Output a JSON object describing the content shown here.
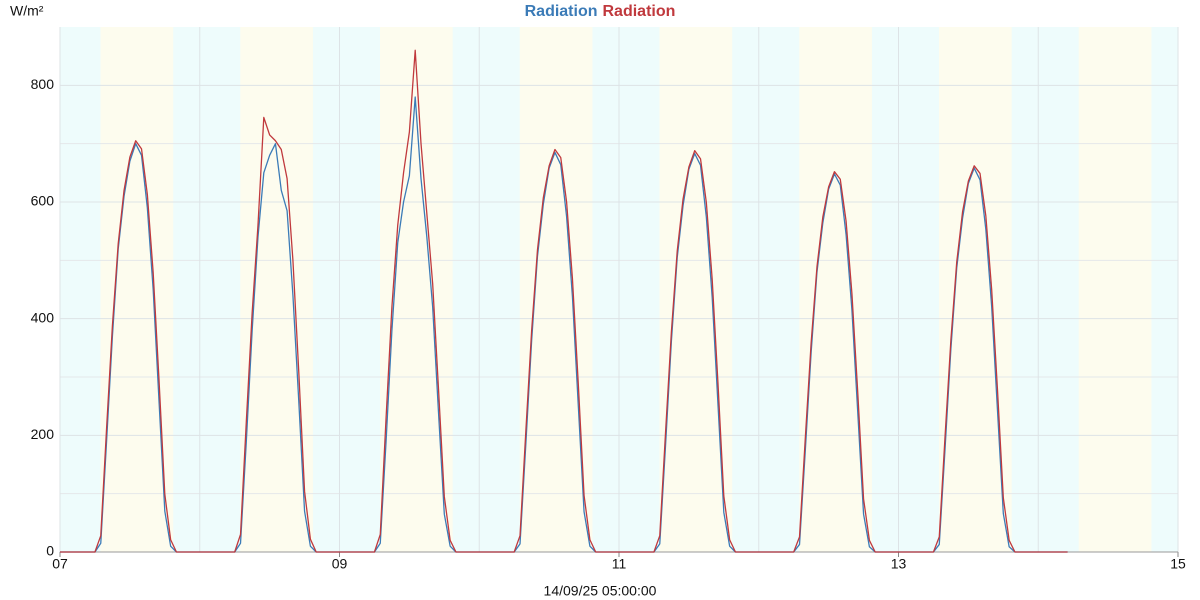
{
  "chart_data": {
    "type": "line",
    "title": "Radiation Radiation",
    "y_unit": "W/m²",
    "xlabel": "14/09/25 05:00:00",
    "xlim": [
      7,
      15
    ],
    "ylim": [
      0,
      900
    ],
    "xticks": [
      {
        "value": 7,
        "label": "07"
      },
      {
        "value": 9,
        "label": "09"
      },
      {
        "value": 11,
        "label": "11"
      },
      {
        "value": 13,
        "label": "13"
      },
      {
        "value": 15,
        "label": "15"
      }
    ],
    "yticks": [
      0,
      200,
      400,
      600,
      800
    ],
    "xgrid_minor": [
      8,
      10,
      12,
      14
    ],
    "ygrid_minor": [
      100,
      300,
      500,
      700
    ],
    "grid": true,
    "night_color": "#eefcfc",
    "day_color": "#fdfcee",
    "day_bands": [
      [
        7.29,
        7.81
      ],
      [
        8.29,
        8.81
      ],
      [
        9.29,
        9.81
      ],
      [
        10.29,
        10.81
      ],
      [
        11.29,
        11.81
      ],
      [
        12.29,
        12.81
      ],
      [
        13.29,
        13.81
      ],
      [
        14.29,
        14.81
      ]
    ],
    "x": [
      7,
      7.25,
      7.2917,
      7.3333,
      7.375,
      7.4167,
      7.4583,
      7.5,
      7.5417,
      7.5833,
      7.625,
      7.6667,
      7.7083,
      7.75,
      7.7917,
      7.8333,
      8.25,
      8.2917,
      8.3333,
      8.375,
      8.4167,
      8.4583,
      8.5,
      8.5417,
      8.5833,
      8.625,
      8.6667,
      8.7083,
      8.75,
      8.7917,
      8.8333,
      9.25,
      9.2917,
      9.3333,
      9.375,
      9.4167,
      9.4583,
      9.5,
      9.5417,
      9.5833,
      9.625,
      9.6667,
      9.7083,
      9.75,
      9.7917,
      9.8333,
      10.25,
      10.2917,
      10.3333,
      10.375,
      10.4167,
      10.4583,
      10.5,
      10.5417,
      10.5833,
      10.625,
      10.6667,
      10.7083,
      10.75,
      10.7917,
      10.8333,
      11.25,
      11.2917,
      11.3333,
      11.375,
      11.4167,
      11.4583,
      11.5,
      11.5417,
      11.5833,
      11.625,
      11.6667,
      11.7083,
      11.75,
      11.7917,
      11.8333,
      12.25,
      12.2917,
      12.3333,
      12.375,
      12.4167,
      12.4583,
      12.5,
      12.5417,
      12.5833,
      12.625,
      12.6667,
      12.7083,
      12.75,
      12.7917,
      12.8333,
      13.25,
      13.2917,
      13.3333,
      13.375,
      13.4167,
      13.4583,
      13.5,
      13.5417,
      13.5833,
      13.625,
      13.6667,
      13.7083,
      13.75,
      13.7917,
      13.8333,
      14.21
    ],
    "series": [
      {
        "name": "Radiation",
        "color": "#3b7bb7",
        "values": [
          0,
          0,
          15,
          190,
          370,
          520,
          610,
          670,
          700,
          680,
          590,
          450,
          260,
          70,
          10,
          0,
          0,
          15,
          190,
          380,
          540,
          650,
          680,
          700,
          620,
          585,
          440,
          260,
          70,
          10,
          0,
          0,
          15,
          190,
          380,
          530,
          600,
          645,
          780,
          640,
          540,
          420,
          240,
          65,
          10,
          0,
          0,
          14,
          185,
          363,
          507,
          596,
          658,
          685,
          664,
          575,
          438,
          253,
          69,
          10,
          0,
          0,
          14,
          184,
          362,
          505,
          594,
          656,
          683,
          663,
          574,
          437,
          253,
          68,
          10,
          0,
          0,
          13,
          175,
          343,
          480,
          564,
          622,
          648,
          629,
          544,
          415,
          240,
          65,
          9,
          0,
          0,
          13,
          178,
          349,
          487,
          572,
          632,
          658,
          638,
          553,
          421,
          243,
          66,
          9,
          0,
          0
        ]
      },
      {
        "name": "Radiation",
        "color": "#c0393d",
        "values": [
          0,
          0,
          28,
          212,
          388,
          529,
          620,
          677,
          705,
          691,
          613,
          479,
          296,
          99,
          21,
          0,
          0,
          30,
          224,
          410,
          560,
          745,
          715,
          705,
          690,
          640,
          500,
          310,
          104,
          22,
          0,
          0,
          30,
          230,
          420,
          560,
          650,
          720,
          860,
          700,
          580,
          460,
          280,
          95,
          20,
          0,
          0,
          28,
          207,
          380,
          518,
          607,
          662,
          690,
          676,
          600,
          469,
          290,
          97,
          21,
          0,
          0,
          28,
          206,
          378,
          516,
          605,
          660,
          688,
          674,
          599,
          468,
          289,
          96,
          21,
          0,
          0,
          26,
          196,
          359,
          489,
          574,
          626,
          652,
          639,
          567,
          443,
          274,
          91,
          20,
          0,
          0,
          26,
          199,
          364,
          497,
          583,
          636,
          662,
          649,
          576,
          450,
          278,
          93,
          20,
          0,
          0
        ]
      }
    ]
  }
}
